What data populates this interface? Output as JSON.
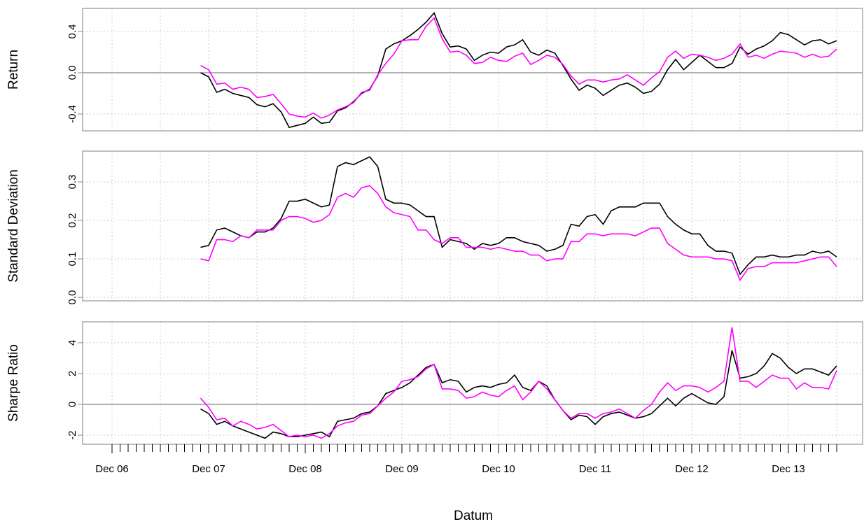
{
  "chart_data": [
    {
      "type": "line",
      "ylabel": "Return",
      "ylim": [
        -0.563,
        0.624
      ],
      "yticks": [
        -0.4,
        {
          "value": 0,
          "label": "0.0"
        },
        0.4
      ],
      "grid": true,
      "zero_line": true,
      "series": [
        {
          "color": "#000000",
          "values": [
            null,
            null,
            null,
            null,
            null,
            null,
            null,
            null,
            null,
            null,
            null,
            0,
            -0.04,
            -0.19,
            -0.16,
            -0.2,
            -0.22,
            -0.24,
            -0.31,
            -0.33,
            -0.3,
            -0.38,
            -0.53,
            -0.51,
            -0.49,
            -0.43,
            -0.49,
            -0.48,
            -0.37,
            -0.34,
            -0.28,
            -0.2,
            -0.16,
            -0.03,
            0.23,
            0.28,
            0.31,
            0.36,
            0.42,
            0.49,
            0.58,
            0.38,
            0.25,
            0.26,
            0.23,
            0.12,
            0.17,
            0.2,
            0.19,
            0.25,
            0.27,
            0.32,
            0.2,
            0.17,
            0.22,
            0.19,
            0.07,
            -0.06,
            -0.17,
            -0.12,
            -0.15,
            -0.22,
            -0.17,
            -0.12,
            -0.1,
            -0.14,
            -0.2,
            -0.18,
            -0.11,
            0.03,
            0.13,
            0.03,
            0.1,
            0.17,
            0.11,
            0.05,
            0.05,
            0.09,
            0.25,
            0.18,
            0.23,
            0.26,
            0.31,
            0.39,
            0.37,
            0.32,
            0.27,
            0.31,
            0.32,
            0.28,
            0.31
          ]
        },
        {
          "color": "#ff00ff",
          "values": [
            null,
            null,
            null,
            null,
            null,
            null,
            null,
            null,
            null,
            null,
            null,
            0.07,
            0.03,
            -0.11,
            -0.1,
            -0.16,
            -0.14,
            -0.16,
            -0.24,
            -0.23,
            -0.21,
            -0.3,
            -0.4,
            -0.42,
            -0.43,
            -0.39,
            -0.44,
            -0.41,
            -0.36,
            -0.33,
            -0.29,
            -0.19,
            -0.17,
            -0.02,
            0.09,
            0.18,
            0.31,
            0.32,
            0.32,
            0.45,
            0.53,
            0.33,
            0.2,
            0.21,
            0.17,
            0.09,
            0.1,
            0.15,
            0.12,
            0.11,
            0.16,
            0.19,
            0.08,
            0.12,
            0.17,
            0.15,
            0.08,
            -0.03,
            -0.11,
            -0.07,
            -0.07,
            -0.09,
            -0.07,
            -0.06,
            -0.02,
            -0.07,
            -0.12,
            -0.05,
            0.01,
            0.15,
            0.21,
            0.14,
            0.18,
            0.17,
            0.15,
            0.12,
            0.14,
            0.18,
            0.28,
            0.15,
            0.17,
            0.14,
            0.18,
            0.21,
            0.2,
            0.19,
            0.15,
            0.18,
            0.15,
            0.16,
            0.23
          ]
        }
      ]
    },
    {
      "type": "line",
      "ylabel": "Standard Deviation",
      "ylim": [
        -0.009,
        0.38
      ],
      "yticks": [
        {
          "value": 0,
          "label": "0.0"
        },
        0.1,
        0.2,
        0.3
      ],
      "grid": true,
      "zero_line": false,
      "series": [
        {
          "color": "#000000",
          "values": [
            null,
            null,
            null,
            null,
            null,
            null,
            null,
            null,
            null,
            null,
            null,
            0.13,
            0.135,
            0.175,
            0.18,
            0.17,
            0.16,
            0.155,
            0.17,
            0.17,
            0.18,
            0.205,
            0.25,
            0.25,
            0.255,
            0.245,
            0.235,
            0.24,
            0.34,
            0.35,
            0.345,
            0.355,
            0.365,
            0.34,
            0.255,
            0.245,
            0.245,
            0.24,
            0.225,
            0.21,
            0.21,
            0.13,
            0.15,
            0.145,
            0.14,
            0.125,
            0.14,
            0.135,
            0.14,
            0.155,
            0.155,
            0.145,
            0.14,
            0.135,
            0.12,
            0.125,
            0.135,
            0.19,
            0.185,
            0.21,
            0.215,
            0.19,
            0.225,
            0.235,
            0.235,
            0.235,
            0.245,
            0.245,
            0.245,
            0.21,
            0.19,
            0.175,
            0.165,
            0.165,
            0.135,
            0.12,
            0.12,
            0.115,
            0.06,
            0.085,
            0.105,
            0.105,
            0.11,
            0.105,
            0.105,
            0.11,
            0.11,
            0.12,
            0.115,
            0.12,
            0.105
          ]
        },
        {
          "color": "#ff00ff",
          "values": [
            null,
            null,
            null,
            null,
            null,
            null,
            null,
            null,
            null,
            null,
            null,
            0.1,
            0.095,
            0.15,
            0.15,
            0.145,
            0.16,
            0.155,
            0.175,
            0.175,
            0.175,
            0.2,
            0.21,
            0.21,
            0.205,
            0.195,
            0.2,
            0.215,
            0.26,
            0.27,
            0.26,
            0.285,
            0.29,
            0.27,
            0.235,
            0.22,
            0.215,
            0.21,
            0.175,
            0.175,
            0.15,
            0.14,
            0.155,
            0.155,
            0.13,
            0.13,
            0.13,
            0.125,
            0.13,
            0.125,
            0.12,
            0.12,
            0.11,
            0.11,
            0.095,
            0.1,
            0.1,
            0.145,
            0.145,
            0.165,
            0.165,
            0.16,
            0.165,
            0.165,
            0.165,
            0.16,
            0.17,
            0.18,
            0.18,
            0.14,
            0.125,
            0.11,
            0.105,
            0.105,
            0.105,
            0.1,
            0.1,
            0.095,
            0.045,
            0.075,
            0.08,
            0.08,
            0.09,
            0.09,
            0.09,
            0.09,
            0.095,
            0.1,
            0.105,
            0.105,
            0.08
          ]
        }
      ]
    },
    {
      "type": "line",
      "ylabel": "Sharpe Ratio",
      "xlabel": "Datum",
      "ylim": [
        -2.59,
        5.36
      ],
      "yticks": [
        -2,
        0,
        2,
        4
      ],
      "grid": true,
      "zero_line": true,
      "categories": [
        "Dec 06",
        null,
        null,
        null,
        null,
        null,
        null,
        null,
        null,
        null,
        null,
        null,
        "Dec 07",
        null,
        null,
        null,
        null,
        null,
        null,
        null,
        null,
        null,
        null,
        null,
        "Dec 08",
        null,
        null,
        null,
        null,
        null,
        null,
        null,
        null,
        null,
        null,
        null,
        "Dec 09",
        null,
        null,
        null,
        null,
        null,
        null,
        null,
        null,
        null,
        null,
        null,
        "Dec 10",
        null,
        null,
        null,
        null,
        null,
        null,
        null,
        null,
        null,
        null,
        null,
        "Dec 11",
        null,
        null,
        null,
        null,
        null,
        null,
        null,
        null,
        null,
        null,
        null,
        "Dec 12",
        null,
        null,
        null,
        null,
        null,
        null,
        null,
        null,
        null,
        null,
        null,
        "Dec 13",
        null,
        null,
        null,
        null,
        null,
        null
      ],
      "series": [
        {
          "color": "#000000",
          "values": [
            null,
            null,
            null,
            null,
            null,
            null,
            null,
            null,
            null,
            null,
            null,
            -0.3,
            -0.6,
            -1.3,
            -1.1,
            -1.4,
            -1.6,
            -1.8,
            -2.0,
            -2.2,
            -1.8,
            -1.9,
            -2.1,
            -2.1,
            -2.0,
            -1.9,
            -1.8,
            -2.1,
            -1.1,
            -1.0,
            -0.9,
            -0.6,
            -0.5,
            -0.1,
            0.7,
            0.9,
            1.1,
            1.4,
            1.9,
            2.4,
            2.6,
            1.4,
            1.6,
            1.5,
            0.8,
            1.1,
            1.2,
            1.1,
            1.3,
            1.4,
            1.9,
            1.1,
            0.9,
            1.5,
            1.2,
            0.3,
            -0.4,
            -1.0,
            -0.7,
            -0.8,
            -1.3,
            -0.8,
            -0.6,
            -0.5,
            -0.7,
            -0.9,
            -0.8,
            -0.6,
            -0.1,
            0.4,
            -0.1,
            0.4,
            0.7,
            0.4,
            0.1,
            0.0,
            0.5,
            3.5,
            1.7,
            1.8,
            2.0,
            2.5,
            3.3,
            3.0,
            2.4,
            2.0,
            2.3,
            2.3,
            2.1,
            1.9,
            2.5
          ]
        },
        {
          "color": "#ff00ff",
          "values": [
            null,
            null,
            null,
            null,
            null,
            null,
            null,
            null,
            null,
            null,
            null,
            0.4,
            -0.2,
            -1.0,
            -0.9,
            -1.4,
            -1.1,
            -1.3,
            -1.6,
            -1.5,
            -1.3,
            -1.7,
            -2.1,
            -2.0,
            -2.1,
            -2.0,
            -2.2,
            -1.9,
            -1.4,
            -1.2,
            -1.1,
            -0.7,
            -0.6,
            -0.1,
            0.4,
            0.8,
            1.5,
            1.6,
            1.8,
            2.3,
            2.6,
            1.0,
            1.0,
            0.9,
            0.4,
            0.5,
            0.8,
            0.6,
            0.5,
            0.9,
            1.2,
            0.3,
            0.8,
            1.5,
            1.0,
            0.3,
            -0.4,
            -0.9,
            -0.6,
            -0.6,
            -0.9,
            -0.6,
            -0.5,
            -0.3,
            -0.6,
            -0.9,
            -0.4,
            0.0,
            0.8,
            1.4,
            0.9,
            1.2,
            1.2,
            1.1,
            0.8,
            1.1,
            1.5,
            5.0,
            1.5,
            1.5,
            1.1,
            1.5,
            1.9,
            1.7,
            1.7,
            1.0,
            1.4,
            1.1,
            1.1,
            1.0,
            2.2
          ]
        }
      ]
    }
  ]
}
